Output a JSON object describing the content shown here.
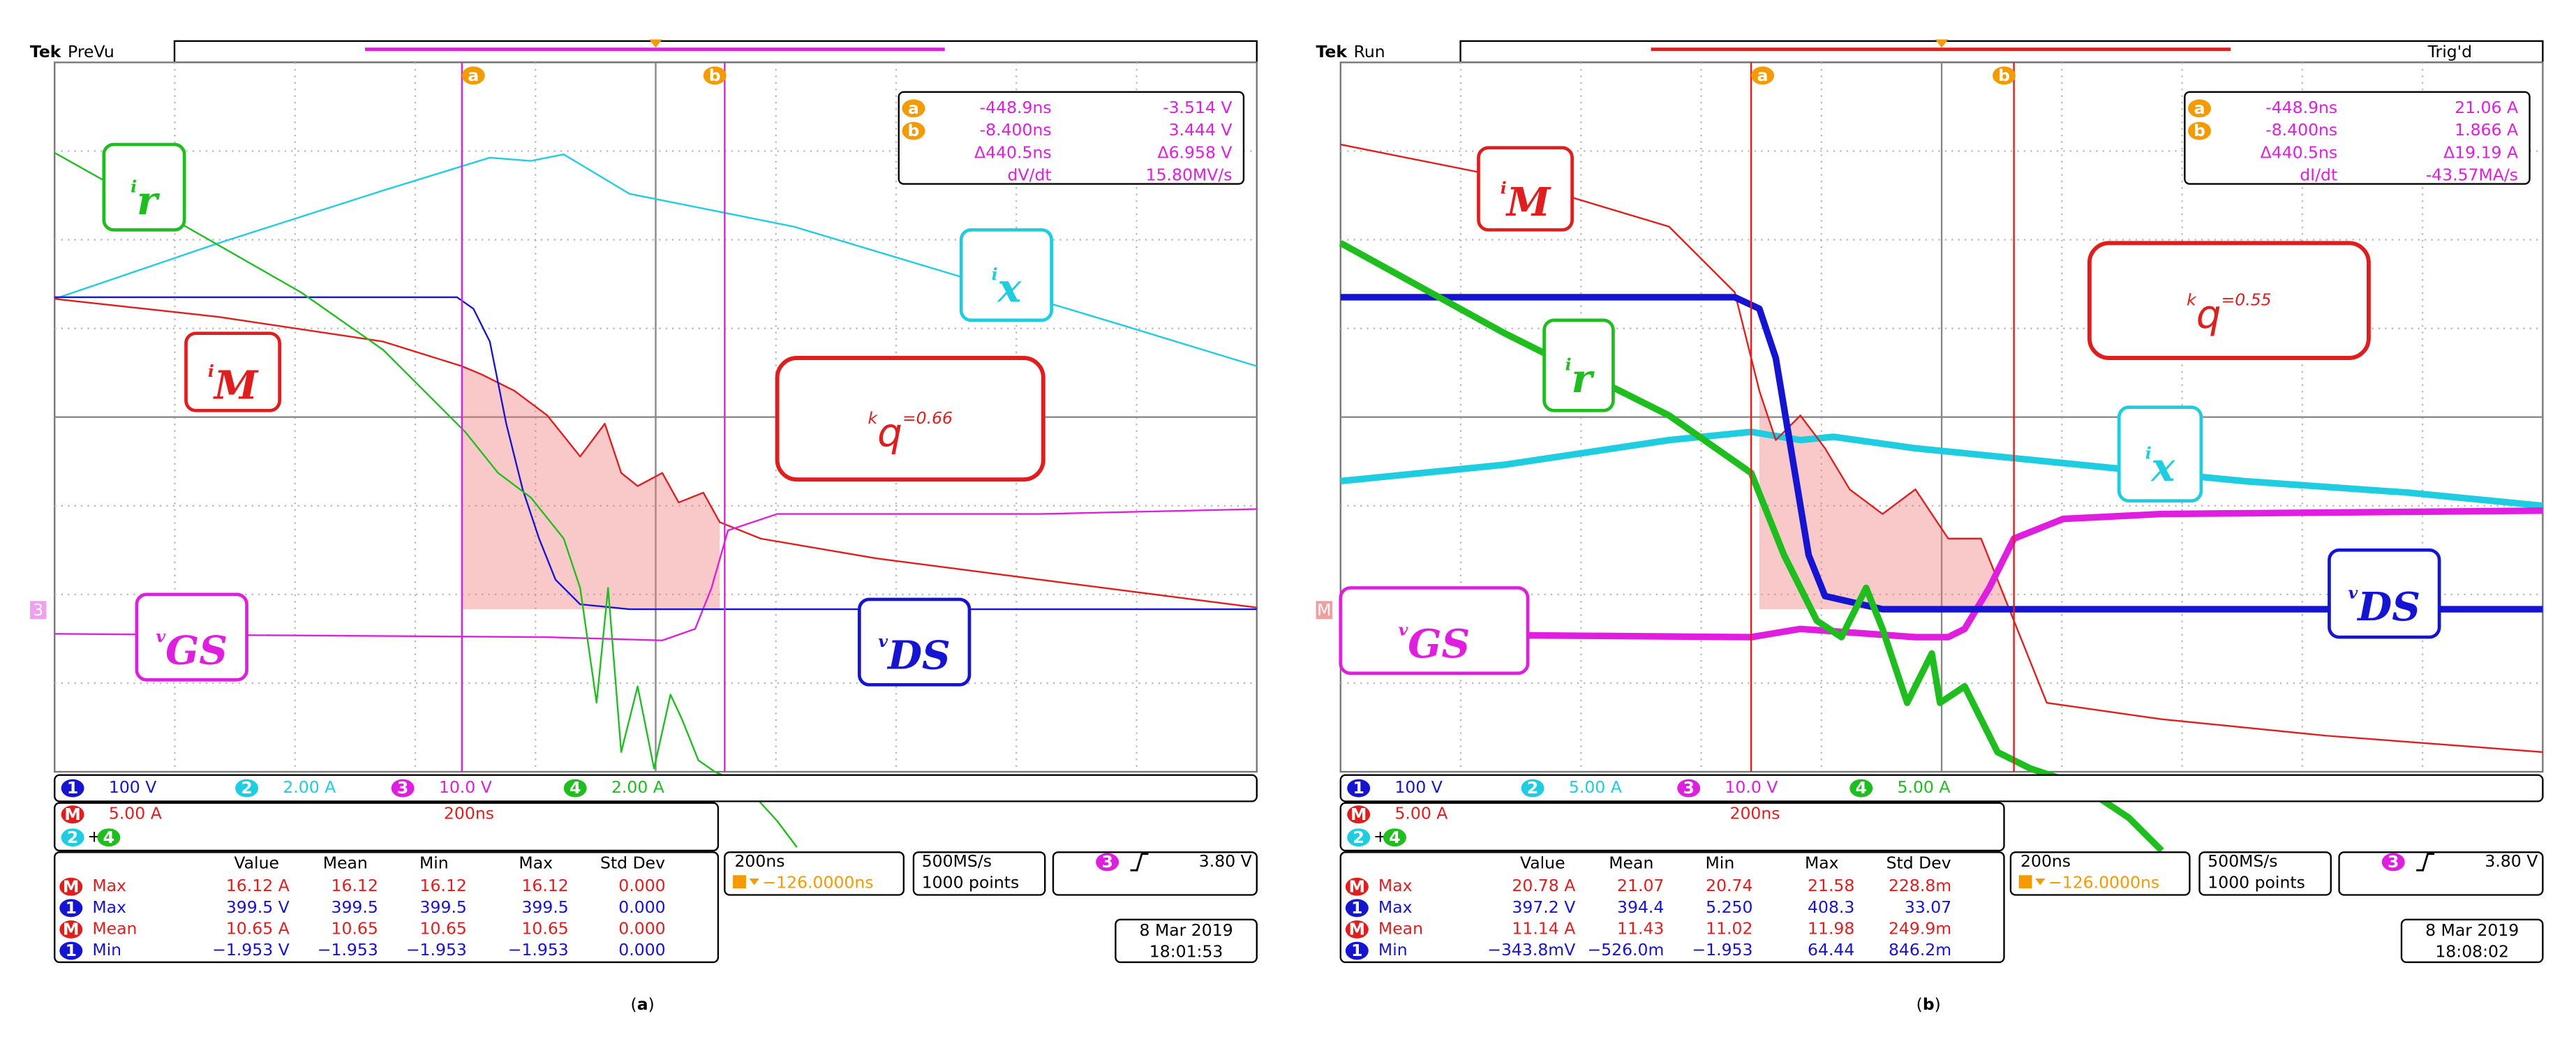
{
  "panels": [
    {
      "brand": "Tek",
      "status": "PreVu",
      "cursors": {
        "a": "a",
        "b": "b"
      },
      "readout": [
        [
          "-448.9ns",
          "-3.514 V"
        ],
        [
          "-8.400ns",
          "3.444 V"
        ],
        [
          "Δ440.5ns",
          "Δ6.958 V"
        ],
        [
          "dV/dt",
          "15.80MV/s"
        ]
      ],
      "ground_marker": "3",
      "labels": {
        "ir": {
          "main": "i",
          "sub": "r"
        },
        "ix": {
          "main": "i",
          "sub": "x"
        },
        "iM": {
          "main": "i",
          "sub": "M"
        },
        "vGS": {
          "main": "v",
          "sub": "GS"
        },
        "vDS": {
          "main": "v",
          "sub": "DS"
        }
      },
      "kq": {
        "main": "k",
        "sub": "q",
        "rest": "=0.66"
      },
      "channels": [
        {
          "n": "1",
          "scale": "100 V"
        },
        {
          "n": "2",
          "scale": "2.00 A"
        },
        {
          "n": "3",
          "scale": "10.0 V"
        },
        {
          "n": "4",
          "scale": "2.00 A"
        }
      ],
      "math": {
        "n": "M",
        "scale": "5.00 A",
        "time": "200ns",
        "a": "2",
        "op": "+",
        "b": "4"
      },
      "meas_header": [
        "Value",
        "Mean",
        "Min",
        "Max",
        "Std Dev"
      ],
      "meas": [
        {
          "src": "M",
          "name": "Max",
          "vals": [
            "16.12 A",
            "16.12",
            "16.12",
            "16.12",
            "0.000"
          ]
        },
        {
          "src": "1",
          "name": "Max",
          "vals": [
            "399.5 V",
            "399.5",
            "399.5",
            "399.5",
            "0.000"
          ]
        },
        {
          "src": "M",
          "name": "Mean",
          "vals": [
            "10.65 A",
            "10.65",
            "10.65",
            "10.65",
            "0.000"
          ]
        },
        {
          "src": "1",
          "name": "Min",
          "vals": [
            "−1.953 V",
            "−1.953",
            "−1.953",
            "−1.953",
            "0.000"
          ]
        }
      ],
      "timebase": "200ns",
      "trigger_pos": "−126.0000ns",
      "rate": "500MS/s",
      "points": "1000 points",
      "trigger": {
        "src": "3",
        "level": "3.80 V"
      },
      "date": "8 Mar 2019",
      "time": "18:01:53",
      "caption": {
        "open": "(",
        "letter": "a",
        "close": ")"
      }
    },
    {
      "brand": "Tek",
      "status": "Run",
      "trig_state": "Trig'd",
      "cursors": {
        "a": "a",
        "b": "b"
      },
      "readout": [
        [
          "-448.9ns",
          "21.06 A"
        ],
        [
          "-8.400ns",
          "1.866 A"
        ],
        [
          "Δ440.5ns",
          "Δ19.19 A"
        ],
        [
          "dI/dt",
          "-43.57MA/s"
        ]
      ],
      "ground_marker": "M",
      "labels": {
        "ir": {
          "main": "i",
          "sub": "r"
        },
        "ix": {
          "main": "i",
          "sub": "x"
        },
        "iM": {
          "main": "i",
          "sub": "M"
        },
        "vGS": {
          "main": "v",
          "sub": "GS"
        },
        "vDS": {
          "main": "v",
          "sub": "DS"
        }
      },
      "kq": {
        "main": "k",
        "sub": "q",
        "rest": "=0.55"
      },
      "channels": [
        {
          "n": "1",
          "scale": "100 V"
        },
        {
          "n": "2",
          "scale": "5.00 A"
        },
        {
          "n": "3",
          "scale": "10.0 V"
        },
        {
          "n": "4",
          "scale": "5.00 A"
        }
      ],
      "math": {
        "n": "M",
        "scale": "5.00 A",
        "time": "200ns",
        "a": "2",
        "op": "+",
        "b": "4"
      },
      "meas_header": [
        "Value",
        "Mean",
        "Min",
        "Max",
        "Std Dev"
      ],
      "meas": [
        {
          "src": "M",
          "name": "Max",
          "vals": [
            "20.78 A",
            "21.07",
            "20.74",
            "21.58",
            "228.8m"
          ]
        },
        {
          "src": "1",
          "name": "Max",
          "vals": [
            "397.2 V",
            "394.4",
            "5.250",
            "408.3",
            "33.07"
          ]
        },
        {
          "src": "M",
          "name": "Mean",
          "vals": [
            "11.14 A",
            "11.43",
            "11.02",
            "11.98",
            "249.9m"
          ]
        },
        {
          "src": "1",
          "name": "Min",
          "vals": [
            "−343.8mV",
            "−526.0m",
            "−1.953",
            "64.44",
            "846.2m"
          ]
        }
      ],
      "timebase": "200ns",
      "trigger_pos": "−126.0000ns",
      "rate": "500MS/s",
      "points": "1000 points",
      "trigger": {
        "src": "3",
        "level": "3.80 V"
      },
      "date": "8 Mar 2019",
      "time": "18:08:02",
      "caption": {
        "open": "(",
        "letter": "b",
        "close": ")"
      }
    }
  ]
}
